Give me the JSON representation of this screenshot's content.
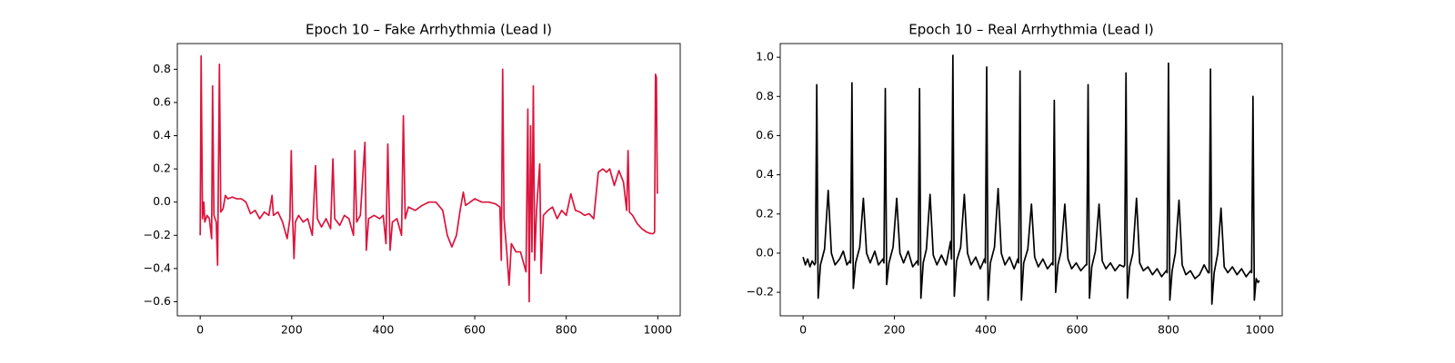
{
  "chart_data": [
    {
      "type": "line",
      "title": "Epoch 10 – Fake Arrhythmia (Lead I)",
      "x": [
        0,
        2,
        5,
        8,
        10,
        15,
        20,
        25,
        27,
        30,
        35,
        38,
        42,
        45,
        50,
        55,
        60,
        70,
        80,
        90,
        100,
        110,
        120,
        130,
        140,
        150,
        157,
        160,
        170,
        180,
        190,
        196,
        199,
        202,
        205,
        208,
        215,
        225,
        235,
        245,
        252,
        256,
        265,
        275,
        285,
        290,
        294,
        305,
        315,
        325,
        335,
        338,
        342,
        350,
        360,
        363,
        368,
        380,
        392,
        400,
        406,
        410,
        415,
        420,
        430,
        440,
        444,
        448,
        455,
        470,
        485,
        500,
        515,
        530,
        540,
        550,
        560,
        568,
        575,
        580,
        590,
        600,
        615,
        630,
        645,
        655,
        658,
        661,
        664,
        670,
        675,
        680,
        690,
        700,
        712,
        716,
        719,
        722,
        725,
        728,
        731,
        735,
        742,
        745,
        750,
        760,
        770,
        780,
        790,
        800,
        810,
        820,
        830,
        840,
        850,
        860,
        870,
        880,
        888,
        895,
        905,
        915,
        925,
        932,
        935,
        938,
        945,
        955,
        965,
        975,
        985,
        990,
        993,
        995,
        997,
        999
      ],
      "series": [
        {
          "color": "#dc143c",
          "values": [
            -0.2,
            0.88,
            -0.1,
            0.0,
            -0.12,
            -0.08,
            -0.1,
            -0.22,
            0.7,
            -0.08,
            -0.12,
            -0.38,
            0.83,
            -0.06,
            -0.04,
            0.04,
            0.02,
            0.03,
            0.02,
            0.02,
            0.0,
            -0.07,
            -0.05,
            -0.1,
            -0.06,
            -0.08,
            0.04,
            -0.08,
            -0.06,
            -0.12,
            -0.22,
            -0.1,
            0.31,
            -0.1,
            -0.34,
            -0.12,
            -0.08,
            -0.12,
            -0.1,
            -0.2,
            0.22,
            -0.1,
            -0.15,
            -0.1,
            -0.16,
            0.26,
            -0.1,
            -0.14,
            -0.08,
            -0.1,
            -0.2,
            0.31,
            -0.12,
            -0.08,
            0.36,
            -0.29,
            -0.1,
            -0.08,
            -0.1,
            -0.08,
            -0.25,
            0.35,
            -0.29,
            -0.12,
            -0.1,
            -0.2,
            0.52,
            -0.1,
            -0.03,
            -0.05,
            -0.02,
            0.0,
            0.0,
            -0.05,
            -0.2,
            -0.27,
            -0.2,
            -0.05,
            0.06,
            -0.02,
            0.0,
            0.02,
            0.0,
            0.0,
            -0.01,
            -0.03,
            -0.35,
            0.8,
            -0.1,
            -0.3,
            -0.5,
            -0.25,
            -0.3,
            -0.3,
            -0.42,
            0.56,
            -0.6,
            0.46,
            -0.3,
            0.7,
            -0.35,
            -0.05,
            0.23,
            -0.43,
            -0.08,
            -0.05,
            -0.03,
            -0.1,
            -0.05,
            -0.08,
            0.05,
            -0.05,
            -0.06,
            -0.08,
            -0.07,
            -0.1,
            0.18,
            0.2,
            0.18,
            0.2,
            0.1,
            0.19,
            0.12,
            -0.05,
            0.31,
            -0.06,
            -0.08,
            -0.13,
            -0.16,
            -0.18,
            -0.19,
            -0.19,
            -0.18,
            0.77,
            0.75,
            0.05
          ]
        }
      ],
      "xlim": [
        -50,
        1049
      ],
      "ylim": [
        -0.685,
        0.955
      ],
      "xticks": [
        0,
        200,
        400,
        600,
        800,
        1000
      ],
      "yticks": [
        {
          "value": -0.6,
          "label": "−0.6"
        },
        {
          "value": -0.4,
          "label": "−0.4"
        },
        {
          "value": -0.2,
          "label": "−0.2"
        },
        {
          "value": 0,
          "label": "0.0"
        },
        0.2,
        0.4,
        0.6,
        0.8
      ]
    },
    {
      "type": "line",
      "title": "Epoch 10 – Real Arrhythmia (Lead I)",
      "x": [
        0,
        5,
        10,
        15,
        20,
        25,
        27,
        30,
        33,
        38,
        47,
        55,
        62,
        70,
        80,
        88,
        96,
        102,
        104,
        107,
        110,
        115,
        124,
        132,
        139,
        147,
        157,
        165,
        175,
        177,
        180,
        183,
        188,
        197,
        205,
        212,
        220,
        230,
        240,
        250,
        252,
        255,
        258,
        263,
        270,
        278,
        285,
        293,
        303,
        313,
        323,
        325,
        328,
        331,
        336,
        345,
        353,
        360,
        368,
        378,
        388,
        397,
        399,
        402,
        405,
        410,
        419,
        427,
        434,
        442,
        452,
        462,
        470,
        472,
        475,
        478,
        483,
        492,
        500,
        507,
        515,
        525,
        535,
        545,
        547,
        550,
        553,
        558,
        565,
        573,
        580,
        588,
        598,
        608,
        619,
        621,
        624,
        627,
        632,
        640,
        648,
        655,
        663,
        673,
        683,
        693,
        702,
        704,
        707,
        710,
        715,
        722,
        730,
        737,
        745,
        755,
        765,
        775,
        785,
        795,
        797,
        800,
        803,
        808,
        815,
        823,
        830,
        838,
        848,
        858,
        868,
        878,
        887,
        889,
        892,
        895,
        900,
        908,
        915,
        922,
        930,
        940,
        950,
        960,
        970,
        980,
        982,
        985,
        988,
        992,
        996,
        999
      ],
      "series": [
        {
          "color": "#000000",
          "values": [
            -0.02,
            -0.06,
            -0.03,
            -0.07,
            -0.04,
            -0.06,
            -0.05,
            0.86,
            -0.23,
            -0.06,
            0.02,
            0.32,
            0.0,
            -0.06,
            -0.03,
            0.01,
            -0.06,
            -0.04,
            -0.05,
            0.87,
            -0.18,
            -0.05,
            0.03,
            0.28,
            0.0,
            -0.05,
            0.01,
            -0.06,
            -0.03,
            -0.05,
            0.84,
            -0.16,
            -0.05,
            0.03,
            0.28,
            0.0,
            -0.05,
            0.01,
            -0.07,
            -0.04,
            -0.06,
            0.84,
            -0.23,
            -0.05,
            0.02,
            0.3,
            -0.01,
            -0.06,
            -0.01,
            -0.06,
            0.06,
            -0.03,
            1.01,
            -0.22,
            -0.04,
            0.03,
            0.3,
            0.0,
            -0.06,
            -0.02,
            -0.08,
            -0.03,
            -0.05,
            0.95,
            -0.24,
            -0.05,
            0.03,
            0.33,
            0.0,
            -0.06,
            -0.02,
            -0.08,
            -0.03,
            -0.05,
            0.93,
            -0.24,
            -0.05,
            0.02,
            0.25,
            -0.02,
            -0.07,
            -0.03,
            -0.08,
            -0.05,
            -0.06,
            0.78,
            -0.2,
            -0.06,
            0.01,
            0.25,
            -0.03,
            -0.08,
            -0.05,
            -0.09,
            -0.06,
            -0.06,
            0.86,
            -0.23,
            -0.07,
            0.01,
            0.25,
            -0.04,
            -0.08,
            -0.05,
            -0.09,
            -0.06,
            -0.07,
            -0.06,
            0.92,
            -0.23,
            -0.07,
            0.0,
            0.28,
            -0.05,
            -0.09,
            -0.07,
            -0.11,
            -0.08,
            -0.12,
            -0.09,
            -0.1,
            0.97,
            -0.24,
            -0.09,
            0.0,
            0.27,
            -0.06,
            -0.11,
            -0.09,
            -0.13,
            -0.11,
            -0.06,
            -0.1,
            -0.1,
            0.94,
            -0.26,
            -0.1,
            0.0,
            0.23,
            -0.07,
            -0.1,
            -0.07,
            -0.11,
            -0.08,
            -0.12,
            -0.09,
            -0.1,
            0.8,
            -0.24,
            -0.13,
            -0.15,
            -0.14
          ]
        }
      ],
      "xlim": [
        -50,
        1049
      ],
      "ylim": [
        -0.32,
        1.07
      ],
      "xticks": [
        0,
        200,
        400,
        600,
        800,
        1000
      ],
      "yticks": [
        {
          "value": -0.2,
          "label": "−0.2"
        },
        {
          "value": 0,
          "label": "0.0"
        },
        0.2,
        0.4,
        0.6,
        0.8,
        {
          "value": 1,
          "label": "1.0"
        }
      ]
    }
  ]
}
